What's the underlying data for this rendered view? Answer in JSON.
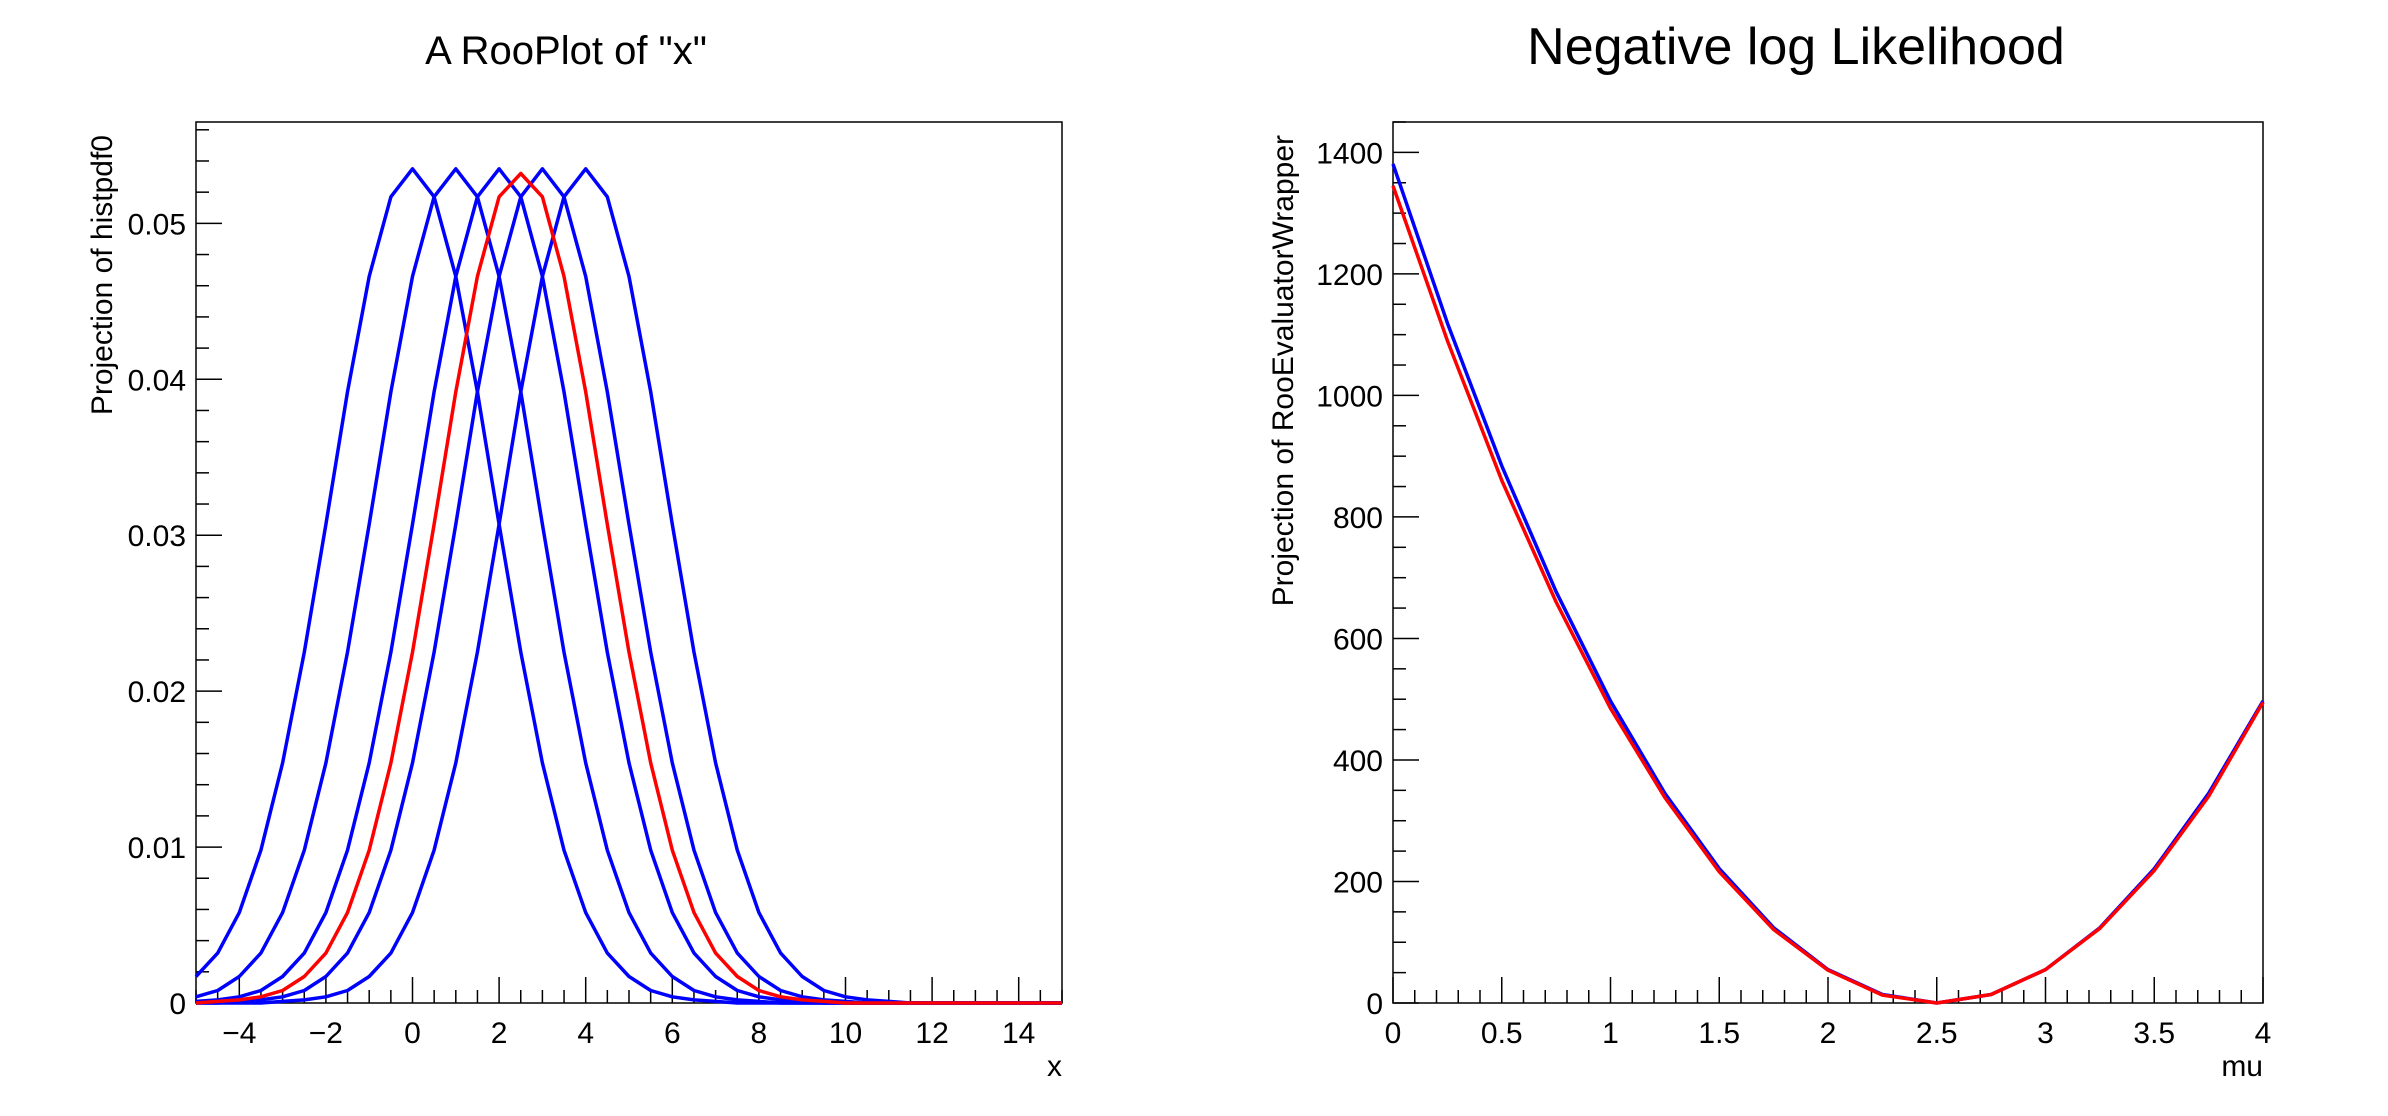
{
  "chart_data": [
    {
      "type": "line",
      "title": "A RooPlot of \"x\"",
      "xlabel": "x",
      "ylabel": "Projection of histpdf0",
      "xlim": [
        -5,
        15
      ],
      "ylim": [
        0,
        0.0565
      ],
      "grid": false,
      "xticks": [
        -4,
        -2,
        0,
        2,
        4,
        6,
        8,
        10,
        12,
        14
      ],
      "xtick_labels": [
        "−4",
        "−2",
        "0",
        "2",
        "4",
        "6",
        "8",
        "10",
        "12",
        "14"
      ],
      "yticks": [
        0,
        0.01,
        0.02,
        0.03,
        0.04,
        0.05
      ],
      "ytick_labels": [
        "0",
        "0.01",
        "0.02",
        "0.03",
        "0.04",
        "0.05"
      ],
      "x": [
        -5,
        -4.5,
        -4,
        -3.5,
        -3,
        -2.5,
        -2,
        -1.5,
        -1,
        -0.5,
        0,
        0.5,
        1,
        1.5,
        2,
        2.5,
        3,
        3.5,
        4,
        4.5,
        5,
        5.5,
        6,
        6.5,
        7,
        7.5,
        8,
        8.5,
        9,
        9.5,
        10,
        10.5,
        11,
        11.5,
        12,
        12.5,
        13,
        13.5,
        14,
        14.5,
        15
      ],
      "series": [
        {
          "color": "#0000ff",
          "values": [
            0.0017,
            0.0032,
            0.0058,
            0.0098,
            0.0154,
            0.0225,
            0.0307,
            0.0392,
            0.0466,
            0.0517,
            0.0535,
            0.0517,
            0.0466,
            0.0392,
            0.0307,
            0.0225,
            0.0154,
            0.0098,
            0.0058,
            0.0032,
            0.0017,
            0.0008,
            0.0004,
            0.0002,
            0.0001,
            0,
            0,
            0,
            0,
            0,
            0,
            0,
            0,
            0,
            0,
            0,
            0,
            0,
            0,
            0,
            0
          ]
        },
        {
          "color": "#0000ff",
          "values": [
            0.0004,
            0.0008,
            0.0017,
            0.0032,
            0.0058,
            0.0098,
            0.0154,
            0.0225,
            0.0307,
            0.0392,
            0.0466,
            0.0517,
            0.0535,
            0.0517,
            0.0466,
            0.0392,
            0.0307,
            0.0225,
            0.0154,
            0.0098,
            0.0058,
            0.0032,
            0.0017,
            0.0008,
            0.0004,
            0.0002,
            0.0001,
            0,
            0,
            0,
            0,
            0,
            0,
            0,
            0,
            0,
            0,
            0,
            0,
            0,
            0
          ]
        },
        {
          "color": "#0000ff",
          "values": [
            0.0001,
            0.0002,
            0.0004,
            0.0008,
            0.0017,
            0.0032,
            0.0058,
            0.0098,
            0.0154,
            0.0225,
            0.0307,
            0.0392,
            0.0466,
            0.0517,
            0.0535,
            0.0517,
            0.0466,
            0.0392,
            0.0307,
            0.0225,
            0.0154,
            0.0098,
            0.0058,
            0.0032,
            0.0017,
            0.0008,
            0.0004,
            0.0002,
            0.0001,
            0,
            0,
            0,
            0,
            0,
            0,
            0,
            0,
            0,
            0,
            0,
            0
          ]
        },
        {
          "color": "#0000ff",
          "values": [
            0,
            0,
            0.0001,
            0.0002,
            0.0004,
            0.0008,
            0.0017,
            0.0032,
            0.0058,
            0.0098,
            0.0154,
            0.0225,
            0.0307,
            0.0392,
            0.0466,
            0.0517,
            0.0535,
            0.0517,
            0.0466,
            0.0392,
            0.0307,
            0.0225,
            0.0154,
            0.0098,
            0.0058,
            0.0032,
            0.0017,
            0.0008,
            0.0004,
            0.0002,
            0.0001,
            0,
            0,
            0,
            0,
            0,
            0,
            0,
            0,
            0,
            0
          ]
        },
        {
          "color": "#0000ff",
          "values": [
            0,
            0,
            0,
            0,
            0.0001,
            0.0002,
            0.0004,
            0.0008,
            0.0017,
            0.0032,
            0.0058,
            0.0098,
            0.0154,
            0.0225,
            0.0307,
            0.0392,
            0.0466,
            0.0517,
            0.0535,
            0.0517,
            0.0466,
            0.0392,
            0.0307,
            0.0225,
            0.0154,
            0.0098,
            0.0058,
            0.0032,
            0.0017,
            0.0008,
            0.0004,
            0.0002,
            0.0001,
            0,
            0,
            0,
            0,
            0,
            0,
            0,
            0
          ]
        },
        {
          "color": "#ff0000",
          "values": [
            0,
            0.0001,
            0.0002,
            0.0004,
            0.0008,
            0.0017,
            0.0032,
            0.0058,
            0.0098,
            0.0154,
            0.0225,
            0.0307,
            0.0392,
            0.0466,
            0.0517,
            0.0532,
            0.0517,
            0.0466,
            0.0392,
            0.0307,
            0.0225,
            0.0154,
            0.0098,
            0.0058,
            0.0032,
            0.0017,
            0.0008,
            0.0004,
            0.0002,
            0.0001,
            0,
            0,
            0,
            0,
            0,
            0,
            0,
            0,
            0,
            0,
            0
          ]
        }
      ]
    },
    {
      "type": "line",
      "title": "Negative log Likelihood",
      "xlabel": "mu",
      "ylabel": "Projection of RooEvaluatorWrapper",
      "xlim": [
        0,
        4
      ],
      "ylim": [
        0,
        1450
      ],
      "grid": false,
      "xticks": [
        0,
        0.5,
        1,
        1.5,
        2,
        2.5,
        3,
        3.5,
        4
      ],
      "xtick_labels": [
        "0",
        "0.5",
        "1",
        "1.5",
        "2",
        "2.5",
        "3",
        "3.5",
        "4"
      ],
      "yticks": [
        0,
        200,
        400,
        600,
        800,
        1000,
        1200,
        1400
      ],
      "ytick_labels": [
        "0",
        "200",
        "400",
        "600",
        "800",
        "1000",
        "1200",
        "1400"
      ],
      "x": [
        0,
        0.25,
        0.5,
        0.75,
        1,
        1.25,
        1.5,
        1.75,
        2,
        2.25,
        2.5,
        2.75,
        3,
        3.25,
        3.5,
        3.75,
        4
      ],
      "series": [
        {
          "color": "#0000ff",
          "values": [
            1381,
            1119,
            884,
            677,
            497,
            345,
            221,
            124,
            55,
            14,
            0,
            14,
            55,
            124,
            221,
            345,
            497
          ]
        },
        {
          "color": "#ff0000",
          "values": [
            1345,
            1090,
            860,
            660,
            485,
            338,
            216,
            121,
            54,
            13,
            0,
            14,
            55,
            123,
            218,
            340,
            495
          ]
        }
      ]
    }
  ]
}
